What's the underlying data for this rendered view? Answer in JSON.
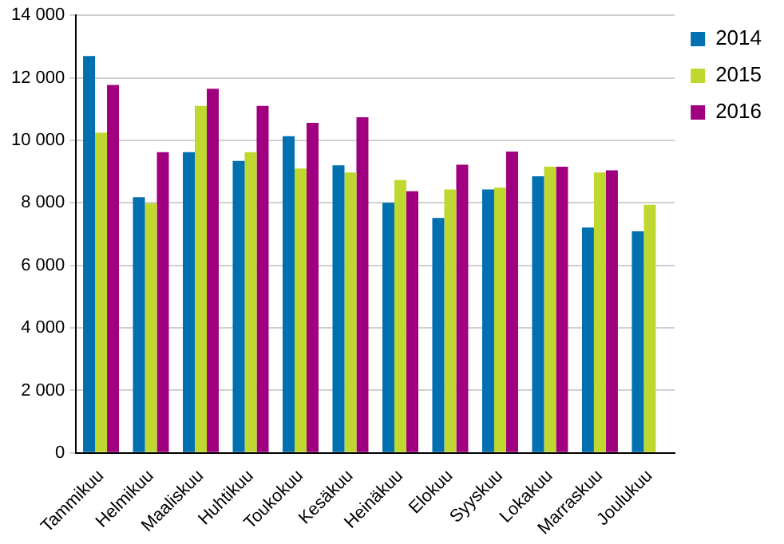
{
  "chart_data": {
    "type": "bar",
    "categories": [
      "Tammikuu",
      "Helmikuu",
      "Maaliskuu",
      "Huhtikuu",
      "Toukokuu",
      "Kesäkuu",
      "Heinäkuu",
      "Elokuu",
      "Syyskuu",
      "Lokakuu",
      "Marraskuu",
      "Joulukuu"
    ],
    "series": [
      {
        "name": "2014",
        "color": "#0070b0",
        "values": [
          12700,
          8180,
          9620,
          9340,
          10130,
          9200,
          8000,
          7520,
          8430,
          8850,
          7210,
          7090
        ]
      },
      {
        "name": "2015",
        "color": "#c0d730",
        "values": [
          10250,
          7980,
          11100,
          9620,
          9100,
          8970,
          8730,
          8430,
          8490,
          9160,
          8970,
          7940
        ]
      },
      {
        "name": "2016",
        "color": "#a0007f",
        "values": [
          11770,
          9620,
          11650,
          11100,
          10560,
          10740,
          8370,
          9220,
          9640,
          9160,
          9040,
          null
        ]
      }
    ],
    "ylim": [
      0,
      14000
    ],
    "yticks": [
      {
        "value": 0,
        "label": "0"
      },
      {
        "value": 2000,
        "label": "2 000"
      },
      {
        "value": 4000,
        "label": "4 000"
      },
      {
        "value": 6000,
        "label": "6 000"
      },
      {
        "value": 8000,
        "label": "8 000"
      },
      {
        "value": 10000,
        "label": "10 000"
      },
      {
        "value": 12000,
        "label": "12 000"
      },
      {
        "value": 14000,
        "label": "14 000"
      }
    ],
    "grid": "y",
    "legend": "top right"
  }
}
